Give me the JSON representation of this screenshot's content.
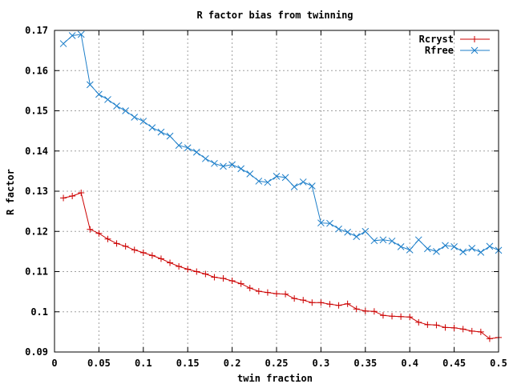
{
  "chart_data": {
    "type": "line",
    "title": "R factor bias from twinning",
    "xlabel": "twin fraction",
    "ylabel": "R factor",
    "xlim": [
      0,
      0.5
    ],
    "ylim": [
      0.09,
      0.17
    ],
    "x_ticks": [
      0,
      0.05,
      0.1,
      0.15,
      0.2,
      0.25,
      0.3,
      0.35,
      0.4,
      0.45,
      0.5
    ],
    "x_tick_labels": [
      "0",
      "0.05",
      "0.1",
      "0.15",
      "0.2",
      "0.25",
      "0.3",
      "0.35",
      "0.4",
      "0.45",
      "0.5"
    ],
    "y_ticks": [
      0.09,
      0.1,
      0.11,
      0.12,
      0.13,
      0.14,
      0.15,
      0.16,
      0.17
    ],
    "y_tick_labels": [
      "0.09",
      "0.1",
      "0.11",
      "0.12",
      "0.13",
      "0.14",
      "0.15",
      "0.16",
      "0.17"
    ],
    "grid": true,
    "legend_position": "top-right",
    "x": [
      0.01,
      0.02,
      0.03,
      0.04,
      0.05,
      0.06,
      0.07,
      0.08,
      0.09,
      0.1,
      0.11,
      0.12,
      0.13,
      0.14,
      0.15,
      0.16,
      0.17,
      0.18,
      0.19,
      0.2,
      0.21,
      0.22,
      0.23,
      0.24,
      0.25,
      0.26,
      0.27,
      0.28,
      0.29,
      0.3,
      0.31,
      0.32,
      0.33,
      0.34,
      0.35,
      0.36,
      0.37,
      0.38,
      0.39,
      0.4,
      0.41,
      0.42,
      0.43,
      0.44,
      0.45,
      0.46,
      0.47,
      0.48,
      0.49,
      0.5
    ],
    "series": [
      {
        "name": "Rcryst",
        "color": "#cc0000",
        "marker": "plus",
        "values": [
          0.1283,
          0.1288,
          0.1296,
          0.1205,
          0.1195,
          0.1181,
          0.117,
          0.1163,
          0.1154,
          0.1147,
          0.114,
          0.1132,
          0.1122,
          0.1113,
          0.1106,
          0.11,
          0.1094,
          0.1086,
          0.1083,
          0.1077,
          0.107,
          0.1059,
          0.1051,
          0.1048,
          0.1045,
          0.1044,
          0.1033,
          0.1029,
          0.1023,
          0.1023,
          0.1019,
          0.1016,
          0.102,
          0.1007,
          0.1002,
          0.1001,
          0.0991,
          0.0989,
          0.0988,
          0.0987,
          0.0974,
          0.0968,
          0.0967,
          0.0961,
          0.096,
          0.0957,
          0.0952,
          0.095,
          0.0933,
          0.0936
        ]
      },
      {
        "name": "Rfree",
        "color": "#1c7ec9",
        "marker": "x",
        "values": [
          0.1667,
          0.1687,
          0.169,
          0.1565,
          0.1541,
          0.1528,
          0.1512,
          0.15,
          0.1484,
          0.1474,
          0.1458,
          0.1447,
          0.1437,
          0.1414,
          0.1408,
          0.1397,
          0.1381,
          0.1369,
          0.1362,
          0.1366,
          0.1356,
          0.1343,
          0.1325,
          0.1322,
          0.1337,
          0.1334,
          0.1311,
          0.1323,
          0.1313,
          0.1221,
          0.122,
          0.1206,
          0.1198,
          0.1187,
          0.12,
          0.1177,
          0.1179,
          0.1176,
          0.1162,
          0.1154,
          0.1179,
          0.1157,
          0.115,
          0.1165,
          0.1162,
          0.1149,
          0.1158,
          0.1148,
          0.1163,
          0.1153
        ]
      }
    ]
  }
}
